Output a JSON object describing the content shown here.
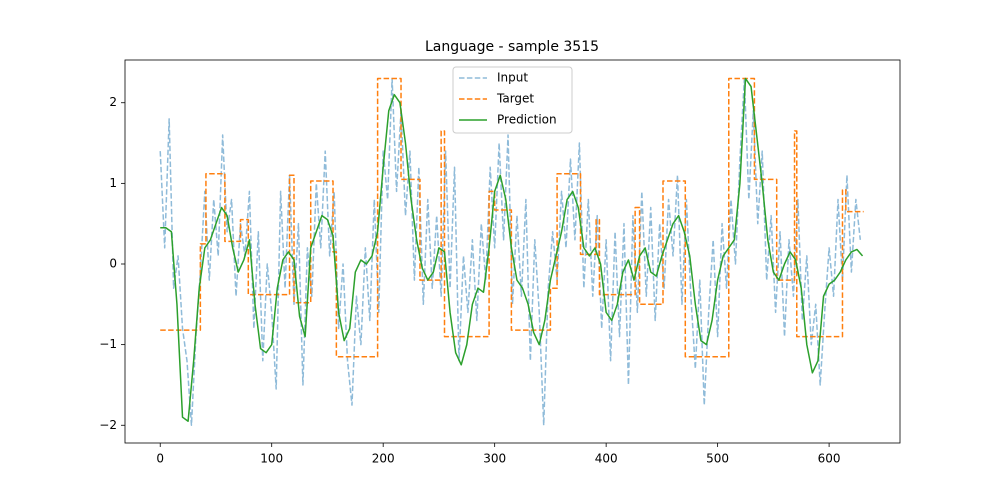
{
  "chart_data": {
    "type": "line",
    "title": "Language - sample 3515",
    "xlim": [
      -31.6,
      663.6
    ],
    "ylim": [
      -2.22,
      2.53
    ],
    "xticks": [
      0,
      100,
      200,
      300,
      400,
      500,
      600
    ],
    "yticks": [
      {
        "value": -2,
        "label": "−2"
      },
      {
        "value": -1,
        "label": "−1"
      },
      0,
      1,
      2
    ],
    "legend": "upper center",
    "series": [
      {
        "name": "Input",
        "color": "#1f77b4",
        "opacity": 0.5,
        "dash": true,
        "x": [
          0,
          4,
          8,
          12,
          16,
          20,
          24,
          28,
          32,
          36,
          40,
          44,
          48,
          52,
          56,
          60,
          64,
          68,
          72,
          76,
          80,
          84,
          88,
          92,
          96,
          100,
          104,
          108,
          112,
          116,
          120,
          124,
          128,
          132,
          136,
          140,
          144,
          148,
          152,
          156,
          160,
          164,
          168,
          172,
          176,
          180,
          184,
          188,
          192,
          196,
          200,
          204,
          208,
          212,
          216,
          220,
          224,
          228,
          232,
          236,
          240,
          244,
          248,
          252,
          256,
          260,
          264,
          268,
          272,
          276,
          280,
          284,
          288,
          292,
          296,
          300,
          304,
          308,
          312,
          316,
          320,
          324,
          328,
          332,
          336,
          340,
          344,
          348,
          352,
          356,
          360,
          364,
          368,
          372,
          376,
          380,
          384,
          388,
          392,
          396,
          400,
          404,
          408,
          412,
          416,
          420,
          424,
          428,
          432,
          436,
          440,
          444,
          448,
          452,
          456,
          460,
          464,
          468,
          472,
          476,
          480,
          484,
          488,
          492,
          496,
          500,
          504,
          508,
          512,
          516,
          520,
          524,
          528,
          532,
          536,
          540,
          544,
          548,
          552,
          556,
          560,
          564,
          568,
          572,
          576,
          580,
          584,
          588,
          592,
          596,
          600,
          604,
          608,
          612,
          616,
          620,
          624,
          628
        ],
        "values": [
          1.4,
          0.2,
          1.8,
          -0.3,
          0.1,
          -0.8,
          -1.2,
          -2.0,
          -0.9,
          -0.1,
          0.9,
          -0.2,
          0.8,
          0.1,
          1.6,
          0.4,
          0.8,
          -0.4,
          0.5,
          0.1,
          0.9,
          -0.8,
          0.4,
          -1.2,
          0.0,
          -0.6,
          -1.55,
          0.9,
          -0.3,
          1.1,
          -0.5,
          0.5,
          -1.5,
          0.2,
          -0.4,
          1.0,
          0.2,
          1.4,
          0.1,
          0.9,
          -0.8,
          0.0,
          -1.2,
          -1.75,
          -0.4,
          -1.0,
          0.2,
          -0.7,
          0.8,
          -0.6,
          1.4,
          0.8,
          2.3,
          0.9,
          1.9,
          0.6,
          1.4,
          -0.2,
          1.2,
          -0.5,
          0.8,
          -0.3,
          0.6,
          -0.4,
          1.4,
          -0.3,
          1.2,
          -1.2,
          0.1,
          -0.6,
          0.3,
          -0.7,
          0.5,
          -0.2,
          1.2,
          0.2,
          1.5,
          0.3,
          1.6,
          -0.5,
          0.6,
          -0.4,
          0.8,
          -1.2,
          0.3,
          -0.6,
          -2.0,
          -0.3,
          0.4,
          -0.2,
          0.9,
          0.2,
          1.3,
          0.3,
          1.5,
          -0.3,
          0.8,
          -0.4,
          0.6,
          -0.8,
          0.3,
          -1.2,
          0.4,
          -0.9,
          0.5,
          -1.5,
          0.6,
          -0.6,
          0.9,
          -0.4,
          0.7,
          -0.7,
          0.5,
          -0.3,
          0.8,
          0.1,
          1.1,
          -0.5,
          0.8,
          -0.4,
          -1.3,
          -0.2,
          -1.75,
          -0.6,
          0.3,
          -0.9,
          0.5,
          -0.3,
          0.8,
          0.0,
          1.3,
          2.3,
          0.8,
          1.9,
          0.5,
          1.4,
          -0.2,
          0.6,
          -0.6,
          0.4,
          -0.9,
          0.3,
          -0.4,
          0.8,
          -0.7,
          0.1,
          -1.0,
          -0.5,
          -1.5,
          -0.6,
          0.2,
          -0.4,
          0.8,
          -0.2,
          1.1,
          -0.1,
          0.8,
          0.3
        ]
      },
      {
        "name": "Target",
        "color": "#ff7f0e",
        "opacity": 1,
        "dash": true,
        "x": [
          0,
          36,
          36,
          41,
          41,
          58,
          58,
          72,
          72,
          79,
          79,
          116,
          116,
          120,
          120,
          135,
          135,
          155,
          155,
          158,
          158,
          195,
          195,
          216,
          216,
          233,
          233,
          252,
          252,
          255,
          255,
          295,
          295,
          300,
          300,
          315,
          315,
          350,
          350,
          356,
          356,
          377,
          377,
          391,
          391,
          394,
          394,
          426,
          426,
          430,
          430,
          451,
          451,
          471,
          471,
          510,
          510,
          533,
          533,
          553,
          553,
          569,
          569,
          571,
          571,
          612,
          612,
          615,
          615,
          631
        ],
        "values": [
          -0.82,
          -0.82,
          0.25,
          0.25,
          1.12,
          1.12,
          0.28,
          0.28,
          0.55,
          0.55,
          -0.38,
          -0.38,
          1.1,
          1.1,
          -0.48,
          -0.48,
          1.03,
          1.03,
          0.15,
          0.15,
          -1.15,
          -1.15,
          2.3,
          2.3,
          1.05,
          1.05,
          -0.2,
          -0.2,
          1.65,
          1.65,
          -0.9,
          -0.9,
          0.9,
          0.9,
          0.67,
          0.67,
          -0.82,
          -0.82,
          -0.3,
          -0.3,
          1.12,
          1.12,
          0.12,
          0.12,
          0.55,
          0.55,
          -0.38,
          -0.38,
          0.7,
          0.7,
          -0.5,
          -0.5,
          1.03,
          1.03,
          -1.15,
          -1.15,
          2.3,
          2.3,
          1.05,
          1.05,
          -0.2,
          -0.2,
          1.65,
          1.65,
          -0.9,
          -0.9,
          0.92,
          0.92,
          0.65,
          0.65
        ]
      },
      {
        "name": "Prediction",
        "color": "#2ca02c",
        "opacity": 1,
        "dash": false,
        "x": [
          0,
          5,
          10,
          15,
          20,
          25,
          30,
          35,
          40,
          45,
          50,
          55,
          60,
          65,
          70,
          75,
          80,
          85,
          90,
          95,
          100,
          105,
          110,
          115,
          120,
          125,
          130,
          135,
          140,
          145,
          150,
          155,
          160,
          165,
          170,
          175,
          180,
          185,
          190,
          195,
          200,
          205,
          210,
          215,
          220,
          225,
          230,
          235,
          240,
          245,
          250,
          255,
          260,
          265,
          270,
          275,
          280,
          285,
          290,
          295,
          300,
          305,
          310,
          315,
          320,
          325,
          330,
          335,
          340,
          345,
          350,
          355,
          360,
          365,
          370,
          375,
          380,
          385,
          390,
          395,
          400,
          405,
          410,
          415,
          420,
          425,
          430,
          435,
          440,
          445,
          450,
          455,
          460,
          465,
          470,
          475,
          480,
          485,
          490,
          495,
          500,
          505,
          510,
          515,
          520,
          525,
          530,
          535,
          540,
          545,
          550,
          555,
          560,
          565,
          570,
          575,
          580,
          585,
          590,
          595,
          600,
          605,
          610,
          615,
          620,
          625,
          630
        ],
        "values": [
          0.45,
          0.45,
          0.4,
          -0.5,
          -1.9,
          -1.95,
          -1.2,
          -0.3,
          0.2,
          0.3,
          0.5,
          0.7,
          0.6,
          0.2,
          -0.1,
          0.05,
          0.3,
          -0.5,
          -1.05,
          -1.1,
          -1.0,
          -0.3,
          0.05,
          0.15,
          0.05,
          -0.65,
          -0.9,
          0.2,
          0.4,
          0.6,
          0.55,
          0.35,
          -0.6,
          -0.95,
          -0.8,
          -0.1,
          0.05,
          0,
          0.1,
          0.4,
          1.2,
          1.9,
          2.1,
          2.0,
          1.5,
          0.8,
          0.3,
          -0.05,
          -0.2,
          -0.1,
          0.2,
          0.15,
          -0.6,
          -1.1,
          -1.25,
          -1.0,
          -0.5,
          -0.3,
          -0.35,
          0.2,
          0.9,
          1.1,
          0.8,
          0.2,
          -0.2,
          -0.3,
          -0.5,
          -0.85,
          -1.0,
          -0.7,
          -0.2,
          0.1,
          0.4,
          0.8,
          0.9,
          0.7,
          0.2,
          0.1,
          0.2,
          0,
          -0.6,
          -0.7,
          -0.5,
          -0.1,
          0.05,
          -0.2,
          0.1,
          0.2,
          -0.1,
          -0.15,
          0.1,
          0.3,
          0.5,
          0.6,
          0.4,
          0.1,
          -0.5,
          -0.95,
          -1.0,
          -0.7,
          -0.2,
          0.1,
          0.2,
          0.3,
          1.0,
          2.3,
          2.2,
          1.6,
          1.0,
          0.3,
          -0.1,
          -0.2,
          0,
          0.15,
          0.05,
          -0.3,
          -1.0,
          -1.35,
          -1.2,
          -0.4,
          -0.25,
          -0.2,
          -0.1,
          0.05,
          0.15,
          0.18,
          0.1
        ]
      }
    ]
  }
}
